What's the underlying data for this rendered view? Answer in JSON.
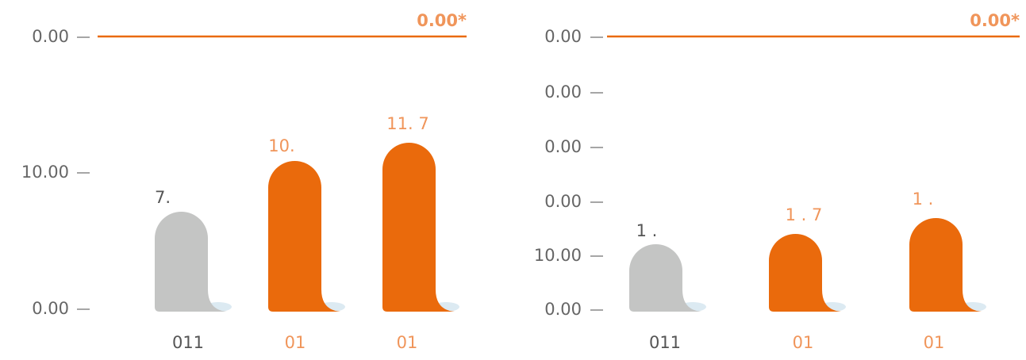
{
  "panels": [
    {
      "axis_labels": [
        "0.00",
        "10.00",
        "0.00"
      ],
      "line_label": "0.00*",
      "bars": [
        {
          "label": "7.",
          "category": "011"
        },
        {
          "label": "10.",
          "category": "01"
        },
        {
          "label": "11. 7",
          "category": "01"
        }
      ]
    },
    {
      "axis_labels": [
        "0.00",
        "0.00",
        "0.00",
        "0.00",
        "10.00",
        "0.00"
      ],
      "line_label": "0.00*",
      "bars": [
        {
          "label": "1 .",
          "category": "011"
        },
        {
          "label": "1 . 7",
          "category": "01"
        },
        {
          "label": "1 .",
          "category": "01"
        }
      ]
    }
  ]
}
